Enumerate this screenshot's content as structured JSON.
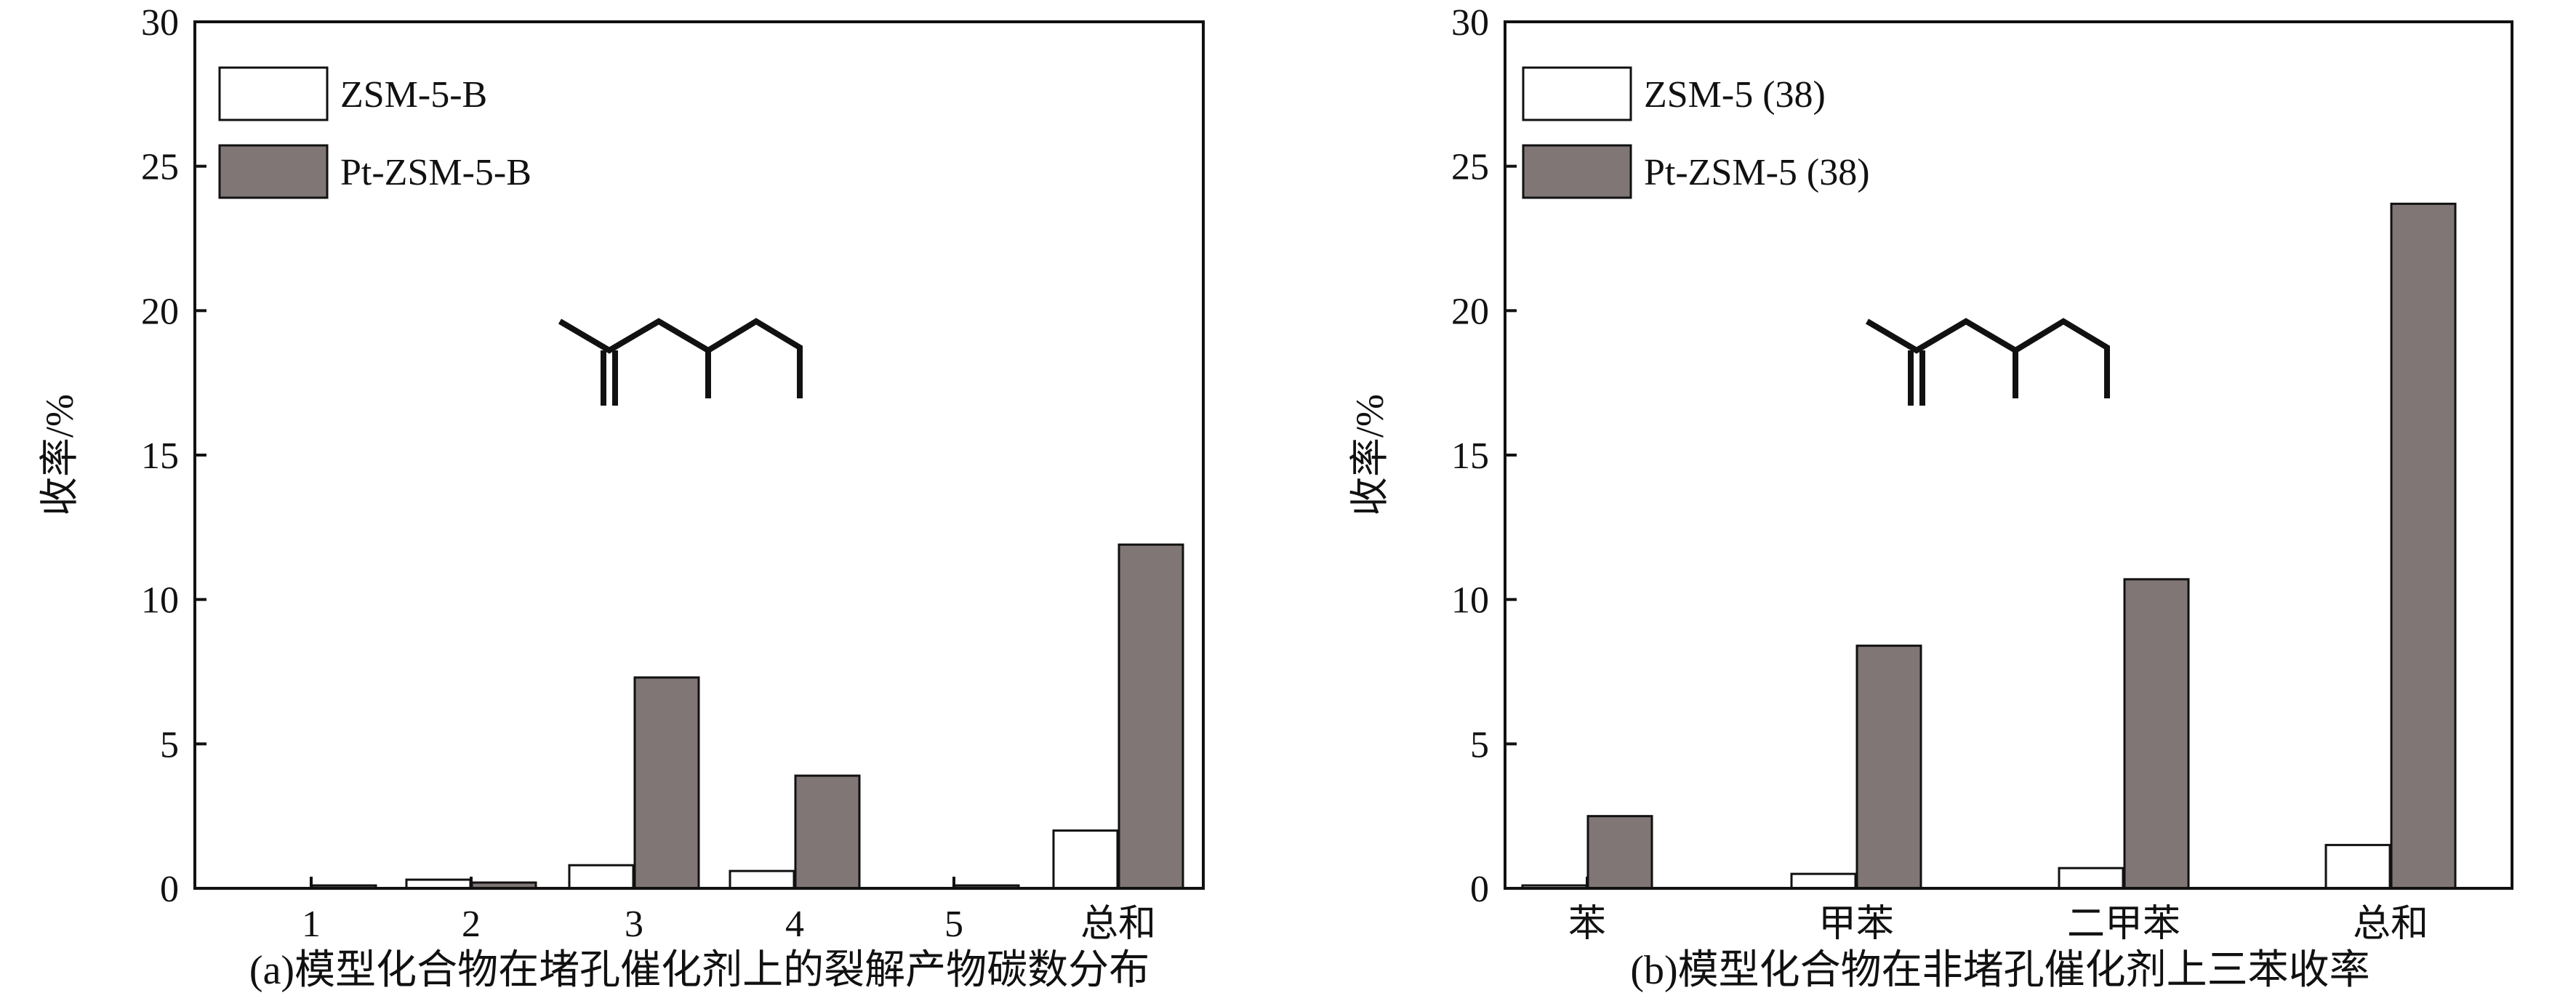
{
  "colors": {
    "light_fill": "#ffffff",
    "dark_fill": "#7f7675",
    "stroke": "#111111"
  },
  "chart_data": [
    {
      "type": "bar",
      "caption": "(a)模型化合物在堵孔催化剂上的裂解产物碳数分布",
      "ylabel": "收率/%",
      "ylim": [
        0,
        30
      ],
      "yticks": [
        0,
        5,
        10,
        15,
        20,
        25,
        30
      ],
      "categories": [
        "1",
        "2",
        "3",
        "4",
        "5",
        "总和"
      ],
      "series": [
        {
          "name": "ZSM-5-B",
          "values": [
            0.0,
            0.3,
            0.8,
            0.6,
            0.0,
            2.0
          ]
        },
        {
          "name": "Pt-ZSM-5-B",
          "values": [
            0.1,
            0.2,
            7.3,
            3.9,
            0.1,
            11.9
          ]
        }
      ],
      "legend_position": "top-left"
    },
    {
      "type": "bar",
      "caption": "(b)模型化合物在非堵孔催化剂上三苯收率",
      "ylabel": "收率/%",
      "ylim": [
        0,
        30
      ],
      "yticks": [
        0,
        5,
        10,
        15,
        20,
        25,
        30
      ],
      "categories": [
        "苯",
        "甲苯",
        "二甲苯",
        "总和"
      ],
      "series": [
        {
          "name": "ZSM-5 (38)",
          "values": [
            0.1,
            0.5,
            0.7,
            1.5
          ]
        },
        {
          "name": "Pt-ZSM-5 (38)",
          "values": [
            2.5,
            8.4,
            10.7,
            23.7
          ]
        }
      ],
      "legend_position": "top-left"
    }
  ]
}
